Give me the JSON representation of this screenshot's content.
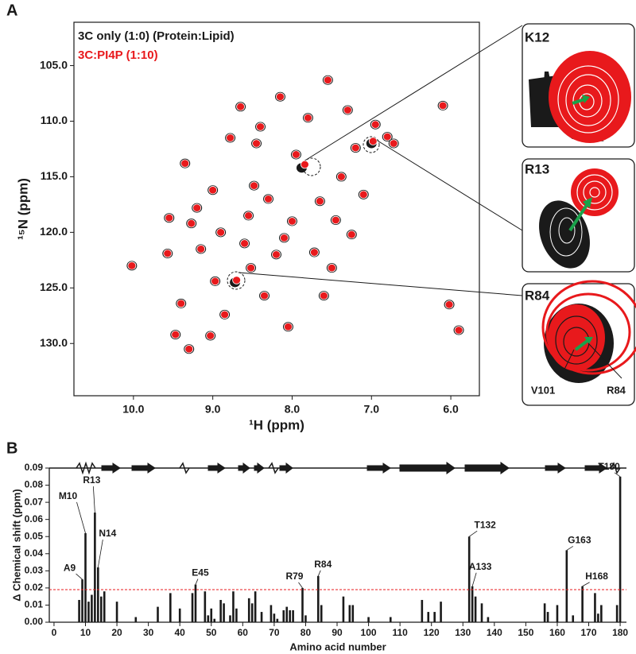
{
  "chart_data": [
    {
      "type": "scatter",
      "panel_label": "A",
      "xlabel": "¹H (ppm)",
      "ylabel": "¹⁵N (ppm)",
      "xlim": [
        10.75,
        5.64
      ],
      "ylim": [
        134.7,
        101.1
      ],
      "xticks": [
        {
          "value": 10,
          "label": "10.0"
        },
        {
          "value": 9,
          "label": "9.0"
        },
        {
          "value": 8,
          "label": "8.0"
        },
        {
          "value": 7,
          "label": "7.0"
        },
        {
          "value": 6,
          "label": "6.0"
        }
      ],
      "yticks": [
        {
          "value": 105,
          "label": "105.0"
        },
        {
          "value": 110,
          "label": "110.0"
        },
        {
          "value": 115,
          "label": "115.0"
        },
        {
          "value": 120,
          "label": "120.0"
        },
        {
          "value": 125,
          "label": "125.0"
        },
        {
          "value": 130,
          "label": "130.0"
        }
      ],
      "series": [
        {
          "name": "3C only  (1:0) (Protein:Lipid)",
          "color": "#1a1a1a",
          "x": [
            10.02,
            9.57,
            9.55,
            9.47,
            9.4,
            9.3,
            9.35,
            9.27,
            9.2,
            9.15,
            9.03,
            9.0,
            8.97,
            8.9,
            8.85,
            8.78,
            8.72,
            8.65,
            8.6,
            8.55,
            8.52,
            8.48,
            8.45,
            8.4,
            8.35,
            8.3,
            8.2,
            8.15,
            8.1,
            8.05,
            8.0,
            7.95,
            7.88,
            7.8,
            7.72,
            7.65,
            7.6,
            7.55,
            7.5,
            7.45,
            7.38,
            7.3,
            7.25,
            7.2,
            7.1,
            7.0,
            6.95,
            6.8,
            6.72,
            6.1,
            5.9,
            6.02
          ],
          "y": [
            123.0,
            121.9,
            118.7,
            129.2,
            126.4,
            130.5,
            113.8,
            119.2,
            117.8,
            121.5,
            129.3,
            116.2,
            124.4,
            120.0,
            127.4,
            111.5,
            124.5,
            108.7,
            121.0,
            118.5,
            123.2,
            115.8,
            112.0,
            110.5,
            125.7,
            117.0,
            122.0,
            107.8,
            120.5,
            128.5,
            119.0,
            113.0,
            114.2,
            109.7,
            121.8,
            117.2,
            125.7,
            106.3,
            123.2,
            118.9,
            115.0,
            109.0,
            120.2,
            112.4,
            116.6,
            112.0,
            110.3,
            111.4,
            112.0,
            108.6,
            128.8,
            126.5
          ]
        },
        {
          "name": "3C:PI4P (1:10)",
          "color": "#e8191c",
          "x": [
            10.02,
            9.57,
            9.55,
            9.47,
            9.4,
            9.3,
            9.35,
            9.27,
            9.2,
            9.15,
            9.03,
            9.0,
            8.97,
            8.9,
            8.85,
            8.78,
            8.7,
            8.65,
            8.6,
            8.55,
            8.52,
            8.48,
            8.45,
            8.4,
            8.35,
            8.3,
            8.2,
            8.15,
            8.1,
            8.05,
            8.0,
            7.95,
            7.84,
            7.8,
            7.72,
            7.65,
            7.6,
            7.55,
            7.5,
            7.45,
            7.38,
            7.3,
            7.25,
            7.2,
            7.1,
            6.98,
            6.95,
            6.8,
            6.72,
            6.1,
            5.9,
            6.02
          ],
          "y": [
            123.0,
            121.9,
            118.7,
            129.2,
            126.4,
            130.5,
            113.8,
            119.2,
            117.8,
            121.5,
            129.3,
            116.2,
            124.4,
            120.0,
            127.4,
            111.5,
            124.3,
            108.7,
            121.0,
            118.5,
            123.2,
            115.8,
            112.0,
            110.5,
            125.7,
            117.0,
            122.0,
            107.8,
            120.5,
            128.5,
            119.0,
            113.0,
            113.9,
            109.7,
            121.8,
            117.2,
            125.7,
            106.3,
            123.2,
            118.9,
            115.0,
            109.0,
            120.2,
            112.4,
            116.6,
            111.8,
            110.3,
            111.4,
            112.0,
            108.6,
            128.8,
            126.5
          ]
        }
      ],
      "insets": [
        "K12",
        "R13",
        "R84"
      ],
      "inset_peak_labels": [
        "V101",
        "R84"
      ]
    },
    {
      "type": "bar",
      "panel_label": "B",
      "xlabel": "Amino acid number",
      "ylabel": "Δ Chemical shift (ppm)",
      "xlim": [
        -1.5,
        182
      ],
      "ylim": [
        0,
        0.09
      ],
      "xticks": [
        0,
        10,
        20,
        30,
        40,
        50,
        60,
        70,
        80,
        90,
        100,
        110,
        120,
        130,
        140,
        150,
        160,
        170,
        180
      ],
      "yticks": [
        {
          "value": 0,
          "label": "0.00"
        },
        {
          "value": 0.01,
          "label": "0.01"
        },
        {
          "value": 0.02,
          "label": "0.02"
        },
        {
          "value": 0.03,
          "label": "0.03"
        },
        {
          "value": 0.04,
          "label": "0.04"
        },
        {
          "value": 0.05,
          "label": "0.05"
        },
        {
          "value": 0.06,
          "label": "0.06"
        },
        {
          "value": 0.07,
          "label": "0.07"
        },
        {
          "value": 0.08,
          "label": "0.08"
        },
        {
          "value": 0.09,
          "label": "0.09"
        }
      ],
      "color": "#1a1a1a",
      "threshold": 0.019,
      "threshold_color": "#e8191c",
      "x": [
        8,
        9,
        10,
        11,
        12,
        13,
        14,
        15,
        16,
        20,
        26,
        33,
        37,
        40,
        44,
        45,
        48,
        49,
        50,
        51,
        53,
        54,
        56,
        57,
        58,
        62,
        63,
        64,
        66,
        69,
        70,
        71,
        73,
        74,
        75,
        76,
        79,
        80,
        84,
        85,
        92,
        94,
        95,
        100,
        107,
        117,
        119,
        121,
        123,
        132,
        133,
        134,
        136,
        138,
        156,
        157,
        160,
        163,
        165,
        168,
        172,
        173,
        174,
        179,
        180
      ],
      "values": [
        0.013,
        0.025,
        0.052,
        0.012,
        0.016,
        0.064,
        0.032,
        0.015,
        0.018,
        0.012,
        0.003,
        0.009,
        0.017,
        0.008,
        0.017,
        0.022,
        0.018,
        0.004,
        0.008,
        0.002,
        0.013,
        0.011,
        0.004,
        0.018,
        0.008,
        0.014,
        0.011,
        0.018,
        0.006,
        0.01,
        0.005,
        0.002,
        0.007,
        0.009,
        0.007,
        0.007,
        0.02,
        0.004,
        0.027,
        0.01,
        0.015,
        0.01,
        0.01,
        0.003,
        0.003,
        0.013,
        0.006,
        0.006,
        0.012,
        0.05,
        0.021,
        0.015,
        0.011,
        0.003,
        0.011,
        0.006,
        0.01,
        0.042,
        0.004,
        0.021,
        0.017,
        0.005,
        0.01,
        0.01,
        0.085
      ],
      "labels": [
        null,
        "A9",
        "M10",
        null,
        null,
        "R13",
        "N14",
        null,
        null,
        null,
        null,
        null,
        null,
        null,
        null,
        "E45",
        null,
        null,
        null,
        null,
        null,
        null,
        null,
        null,
        null,
        null,
        null,
        null,
        null,
        null,
        null,
        null,
        null,
        null,
        null,
        null,
        "R79",
        null,
        "R84",
        null,
        null,
        null,
        null,
        null,
        null,
        null,
        null,
        null,
        null,
        "T132",
        "A133",
        null,
        null,
        null,
        null,
        null,
        null,
        "G163",
        null,
        "H168",
        null,
        null,
        null,
        null,
        "T180"
      ]
    }
  ]
}
